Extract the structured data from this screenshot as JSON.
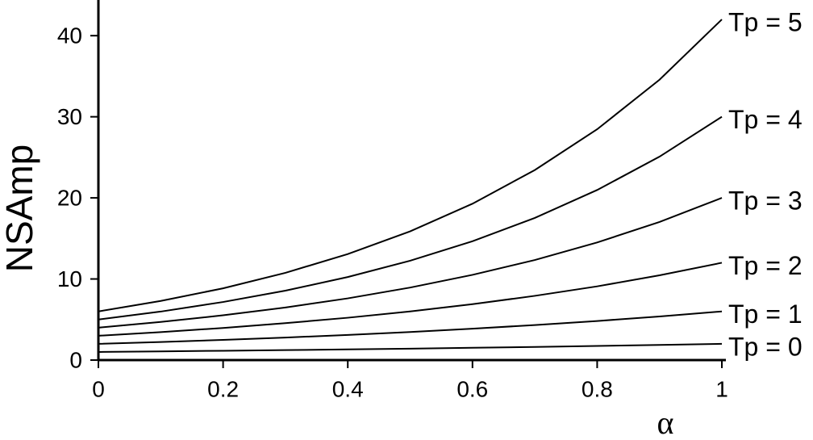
{
  "chart_data": {
    "type": "line",
    "x_label": "α",
    "y_label": "NSAmp",
    "x": [
      0,
      0.1,
      0.2,
      0.3,
      0.4,
      0.5,
      0.6,
      0.7,
      0.8,
      0.9,
      1
    ],
    "series": [
      {
        "name": "Tp = 0",
        "color": "#000000",
        "values": [
          1,
          1.07,
          1.15,
          1.23,
          1.32,
          1.41,
          1.52,
          1.62,
          1.74,
          1.87,
          2
        ]
      },
      {
        "name": "Tp = 1",
        "color": "#000000",
        "values": [
          2,
          2.23,
          2.49,
          2.78,
          3.1,
          3.46,
          3.87,
          4.32,
          4.82,
          5.38,
          6
        ]
      },
      {
        "name": "Tp = 2",
        "color": "#000000",
        "values": [
          3,
          3.45,
          3.96,
          4.55,
          5.22,
          6,
          6.89,
          7.92,
          9.09,
          10.45,
          12
        ]
      },
      {
        "name": "Tp = 3",
        "color": "#000000",
        "values": [
          4,
          4.7,
          5.52,
          6.48,
          7.61,
          8.94,
          10.51,
          12.34,
          14.5,
          17.03,
          20
        ]
      },
      {
        "name": "Tp = 4",
        "color": "#000000",
        "values": [
          5,
          5.98,
          7.16,
          8.56,
          10.24,
          12.25,
          14.65,
          17.53,
          20.97,
          25.08,
          30
        ]
      },
      {
        "name": "Tp = 5",
        "color": "#000000",
        "values": [
          6,
          7.29,
          8.85,
          10.76,
          13.07,
          15.87,
          19.28,
          23.43,
          28.46,
          34.57,
          42
        ]
      }
    ],
    "xlim": [
      0,
      1
    ],
    "xticks": [
      0,
      0.2,
      0.4,
      0.6,
      0.8,
      1
    ],
    "ylim": [
      0,
      44
    ],
    "yticks": [
      0,
      10,
      20,
      30,
      40
    ]
  }
}
